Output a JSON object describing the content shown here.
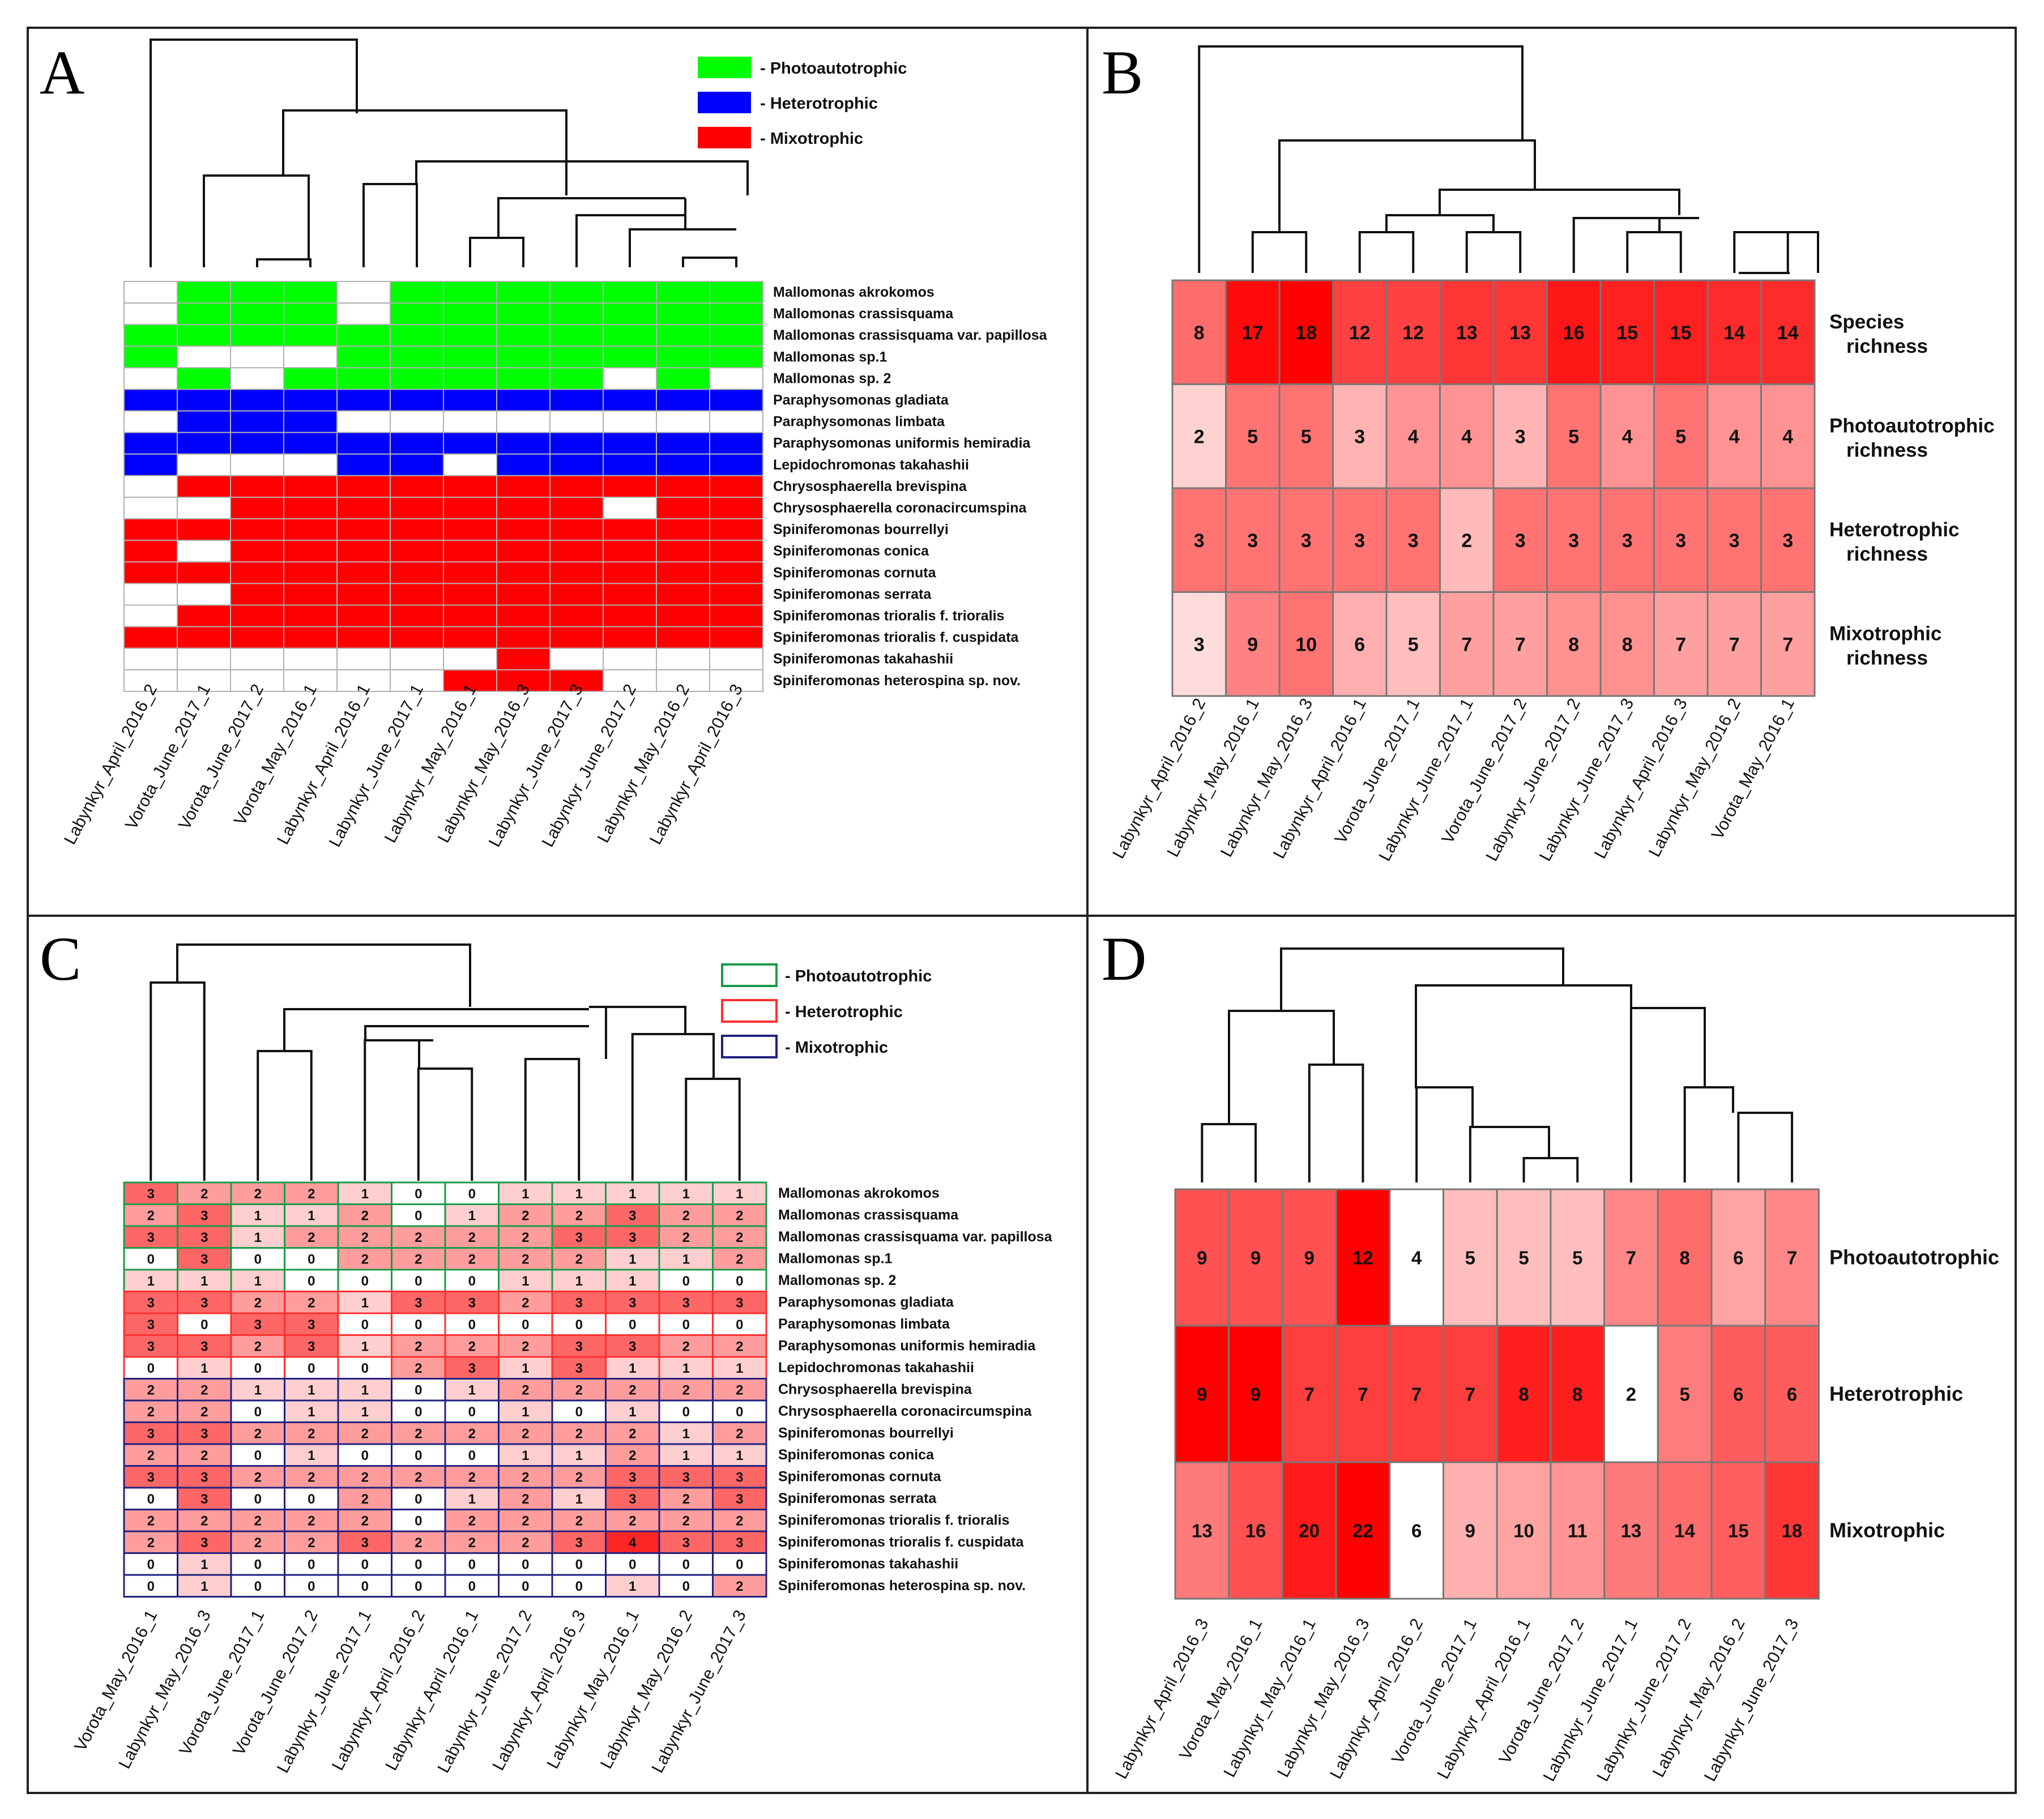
{
  "panels": {
    "A": {
      "label": "A",
      "samples": [
        "Labynkyr_April_2016_2",
        "Vorota_June_2017_1",
        "Vorota_June_2017_2",
        "Vorota_May_2016_1",
        "Labynkyr_April_2016_1",
        "Labynkyr_June_2017_1",
        "Labynkyr_May_2016_1",
        "Labynkyr_May_2016_3",
        "Labynkyr_June_2017_3",
        "Labynkyr_June_2017_2",
        "Labynkyr_May_2016_2",
        "Labynkyr_April_2016_3"
      ],
      "species": [
        "Mallomonas akrokomos",
        "Mallomonas crassisquama",
        "Mallomonas crassisquama var. papillosa",
        "Mallomonas sp.1",
        "Mallomonas sp. 2",
        "Paraphysomonas gladiata",
        "Paraphysomonas limbata",
        "Paraphysomonas uniformis hemiradia",
        "Lepidochromonas takahashii",
        "Chrysosphaerella brevispina",
        "Chrysosphaerella coronacircumspina",
        "Spiniferomonas bourrellyi",
        "Spiniferomonas conica",
        "Spiniferomonas cornuta",
        "Spiniferomonas serrata",
        "Spiniferomonas trioralis f. trioralis",
        "Spiniferomonas trioralis f. cuspidata",
        "Spiniferomonas takahashii",
        "Spiniferomonas heterospina sp. nov."
      ],
      "groups": [
        "P",
        "P",
        "P",
        "P",
        "P",
        "H",
        "H",
        "H",
        "H",
        "M",
        "M",
        "M",
        "M",
        "M",
        "M",
        "M",
        "M",
        "M",
        "M"
      ],
      "presence": [
        "011101111111",
        "011101111111",
        "111111111111",
        "100011111111",
        "010111111010",
        "111111111111",
        "011100000000",
        "111111111111",
        "100011011111",
        "011111111111",
        "001111111011",
        "111111111111",
        "101111111111",
        "111111111111",
        "001111111111",
        "011111111111",
        "111111111111",
        "000000010000",
        "000000111000"
      ],
      "legend": [
        {
          "label": "- Photoautotrophic",
          "color": "#00ff00"
        },
        {
          "label": "- Heterotrophic",
          "color": "#0000ff"
        },
        {
          "label": "- Mixotrophic",
          "color": "#ff0000"
        }
      ]
    },
    "B": {
      "label": "B",
      "samples": [
        "Labynkyr_April_2016_2",
        "Labynkyr_May_2016_1",
        "Labynkyr_May_2016_3",
        "Labynkyr_April_2016_1",
        "Vorota_June_2017_1",
        "Labynkyr_June_2017_1",
        "Vorota_June_2017_2",
        "Labynkyr_June_2017_2",
        "Labynkyr_June_2017_3",
        "Labynkyr_April_2016_3",
        "Labynkyr_May_2016_2",
        "Vorota_May_2016_1"
      ],
      "rows": [
        {
          "label1": "Species",
          "label2": "richness",
          "values": [
            8,
            17,
            18,
            12,
            12,
            13,
            13,
            16,
            15,
            15,
            14,
            14
          ]
        },
        {
          "label1": "Photoautotrophic",
          "label2": "richness",
          "values": [
            2,
            5,
            5,
            3,
            4,
            4,
            3,
            5,
            4,
            5,
            4,
            4
          ]
        },
        {
          "label1": "Heterotrophic",
          "label2": "richness",
          "values": [
            3,
            3,
            3,
            3,
            3,
            2,
            3,
            3,
            3,
            3,
            3,
            3
          ]
        },
        {
          "label1": "Mixotrophic",
          "label2": "richness",
          "values": [
            3,
            9,
            10,
            6,
            5,
            7,
            7,
            8,
            8,
            7,
            7,
            7
          ]
        }
      ]
    },
    "C": {
      "label": "C",
      "samples": [
        "Vorota_May_2016_1",
        "Labynkyr_May_2016_3",
        "Vorota_June_2017_1",
        "Vorota_June_2017_2",
        "Labynkyr_June_2017_1",
        "Labynkyr_April_2016_2",
        "Labynkyr_April_2016_1",
        "Labynkyr_June_2017_2",
        "Labynkyr_April_2016_3",
        "Labynkyr_May_2016_1",
        "Labynkyr_May_2016_2",
        "Labynkyr_June_2017_3"
      ],
      "species": [
        "Mallomonas akrokomos",
        "Mallomonas crassisquama",
        "Mallomonas crassisquama var. papillosa",
        "Mallomonas sp.1",
        "Mallomonas sp. 2",
        "Paraphysomonas gladiata",
        "Paraphysomonas limbata",
        "Paraphysomonas uniformis hemiradia",
        "Lepidochromonas takahashii",
        "Chrysosphaerella brevispina",
        "Chrysosphaerella coronacircumspina",
        "Spiniferomonas bourrellyi",
        "Spiniferomonas conica",
        "Spiniferomonas cornuta",
        "Spiniferomonas serrata",
        "Spiniferomonas trioralis f. trioralis",
        "Spiniferomonas trioralis f. cuspidata",
        "Spiniferomonas takahashii",
        "Spiniferomonas heterospina sp. nov."
      ],
      "groups": [
        "P",
        "P",
        "P",
        "P",
        "P",
        "H",
        "H",
        "H",
        "H",
        "M",
        "M",
        "M",
        "M",
        "M",
        "M",
        "M",
        "M",
        "M",
        "M"
      ],
      "values": [
        [
          3,
          2,
          2,
          2,
          1,
          0,
          0,
          1,
          1,
          1,
          1,
          1
        ],
        [
          2,
          3,
          1,
          1,
          2,
          0,
          1,
          2,
          2,
          3,
          2,
          2
        ],
        [
          3,
          3,
          1,
          2,
          2,
          2,
          2,
          2,
          3,
          3,
          2,
          2
        ],
        [
          0,
          3,
          0,
          0,
          2,
          2,
          2,
          2,
          2,
          1,
          1,
          2
        ],
        [
          1,
          1,
          1,
          0,
          0,
          0,
          0,
          1,
          1,
          1,
          0,
          0
        ],
        [
          3,
          3,
          2,
          2,
          1,
          3,
          3,
          2,
          3,
          3,
          3,
          3
        ],
        [
          3,
          0,
          3,
          3,
          0,
          0,
          0,
          0,
          0,
          0,
          0,
          0
        ],
        [
          3,
          3,
          2,
          3,
          1,
          2,
          2,
          2,
          3,
          3,
          2,
          2
        ],
        [
          0,
          1,
          0,
          0,
          0,
          2,
          3,
          1,
          3,
          1,
          1,
          1
        ],
        [
          2,
          2,
          1,
          1,
          1,
          0,
          1,
          2,
          2,
          2,
          2,
          2
        ],
        [
          2,
          2,
          0,
          1,
          1,
          0,
          0,
          1,
          0,
          1,
          0,
          0
        ],
        [
          3,
          3,
          2,
          2,
          2,
          2,
          2,
          2,
          2,
          2,
          1,
          2
        ],
        [
          2,
          2,
          0,
          1,
          0,
          0,
          0,
          1,
          1,
          2,
          1,
          1
        ],
        [
          3,
          3,
          2,
          2,
          2,
          2,
          2,
          2,
          2,
          3,
          3,
          3
        ],
        [
          0,
          3,
          0,
          0,
          2,
          0,
          1,
          2,
          1,
          3,
          2,
          3
        ],
        [
          2,
          2,
          2,
          2,
          2,
          0,
          2,
          2,
          2,
          2,
          2,
          2
        ],
        [
          2,
          3,
          2,
          2,
          3,
          2,
          2,
          2,
          3,
          4,
          3,
          3
        ],
        [
          0,
          1,
          0,
          0,
          0,
          0,
          0,
          0,
          0,
          0,
          0,
          0
        ],
        [
          0,
          1,
          0,
          0,
          0,
          0,
          0,
          0,
          0,
          1,
          0,
          2
        ]
      ],
      "legend": [
        {
          "label": "- Photoautotrophic",
          "color": "#1a9a4a"
        },
        {
          "label": "- Heterotrophic",
          "color": "#ff3030"
        },
        {
          "label": "- Mixotrophic",
          "color": "#202080"
        }
      ]
    },
    "D": {
      "label": "D",
      "samples": [
        "Labynkyr_April_2016_3",
        "Vorota_May_2016_1",
        "Labynkyr_May_2016_1",
        "Labynkyr_May_2016_3",
        "Labynkyr_April_2016_2",
        "Vorota_June_2017_1",
        "Labynkyr_April_2016_1",
        "Vorota_June_2017_2",
        "Labynkyr_June_2017_1",
        "Labynkyr_June_2017_2",
        "Labynkyr_May_2016_2",
        "Labynkyr_June_2017_3"
      ],
      "rows": [
        {
          "label": "Photoautotrophic",
          "values": [
            9,
            9,
            9,
            12,
            4,
            5,
            5,
            5,
            7,
            8,
            6,
            7
          ]
        },
        {
          "label": "Heterotrophic",
          "values": [
            9,
            9,
            7,
            7,
            7,
            7,
            8,
            8,
            2,
            5,
            6,
            6
          ]
        },
        {
          "label": "Mixotrophic",
          "values": [
            13,
            16,
            20,
            22,
            6,
            9,
            10,
            11,
            13,
            14,
            15,
            18
          ]
        }
      ]
    }
  },
  "colors": {
    "green": "#00ff00",
    "blue": "#0000ff",
    "red": "#ff0000",
    "frame": "#333333"
  }
}
